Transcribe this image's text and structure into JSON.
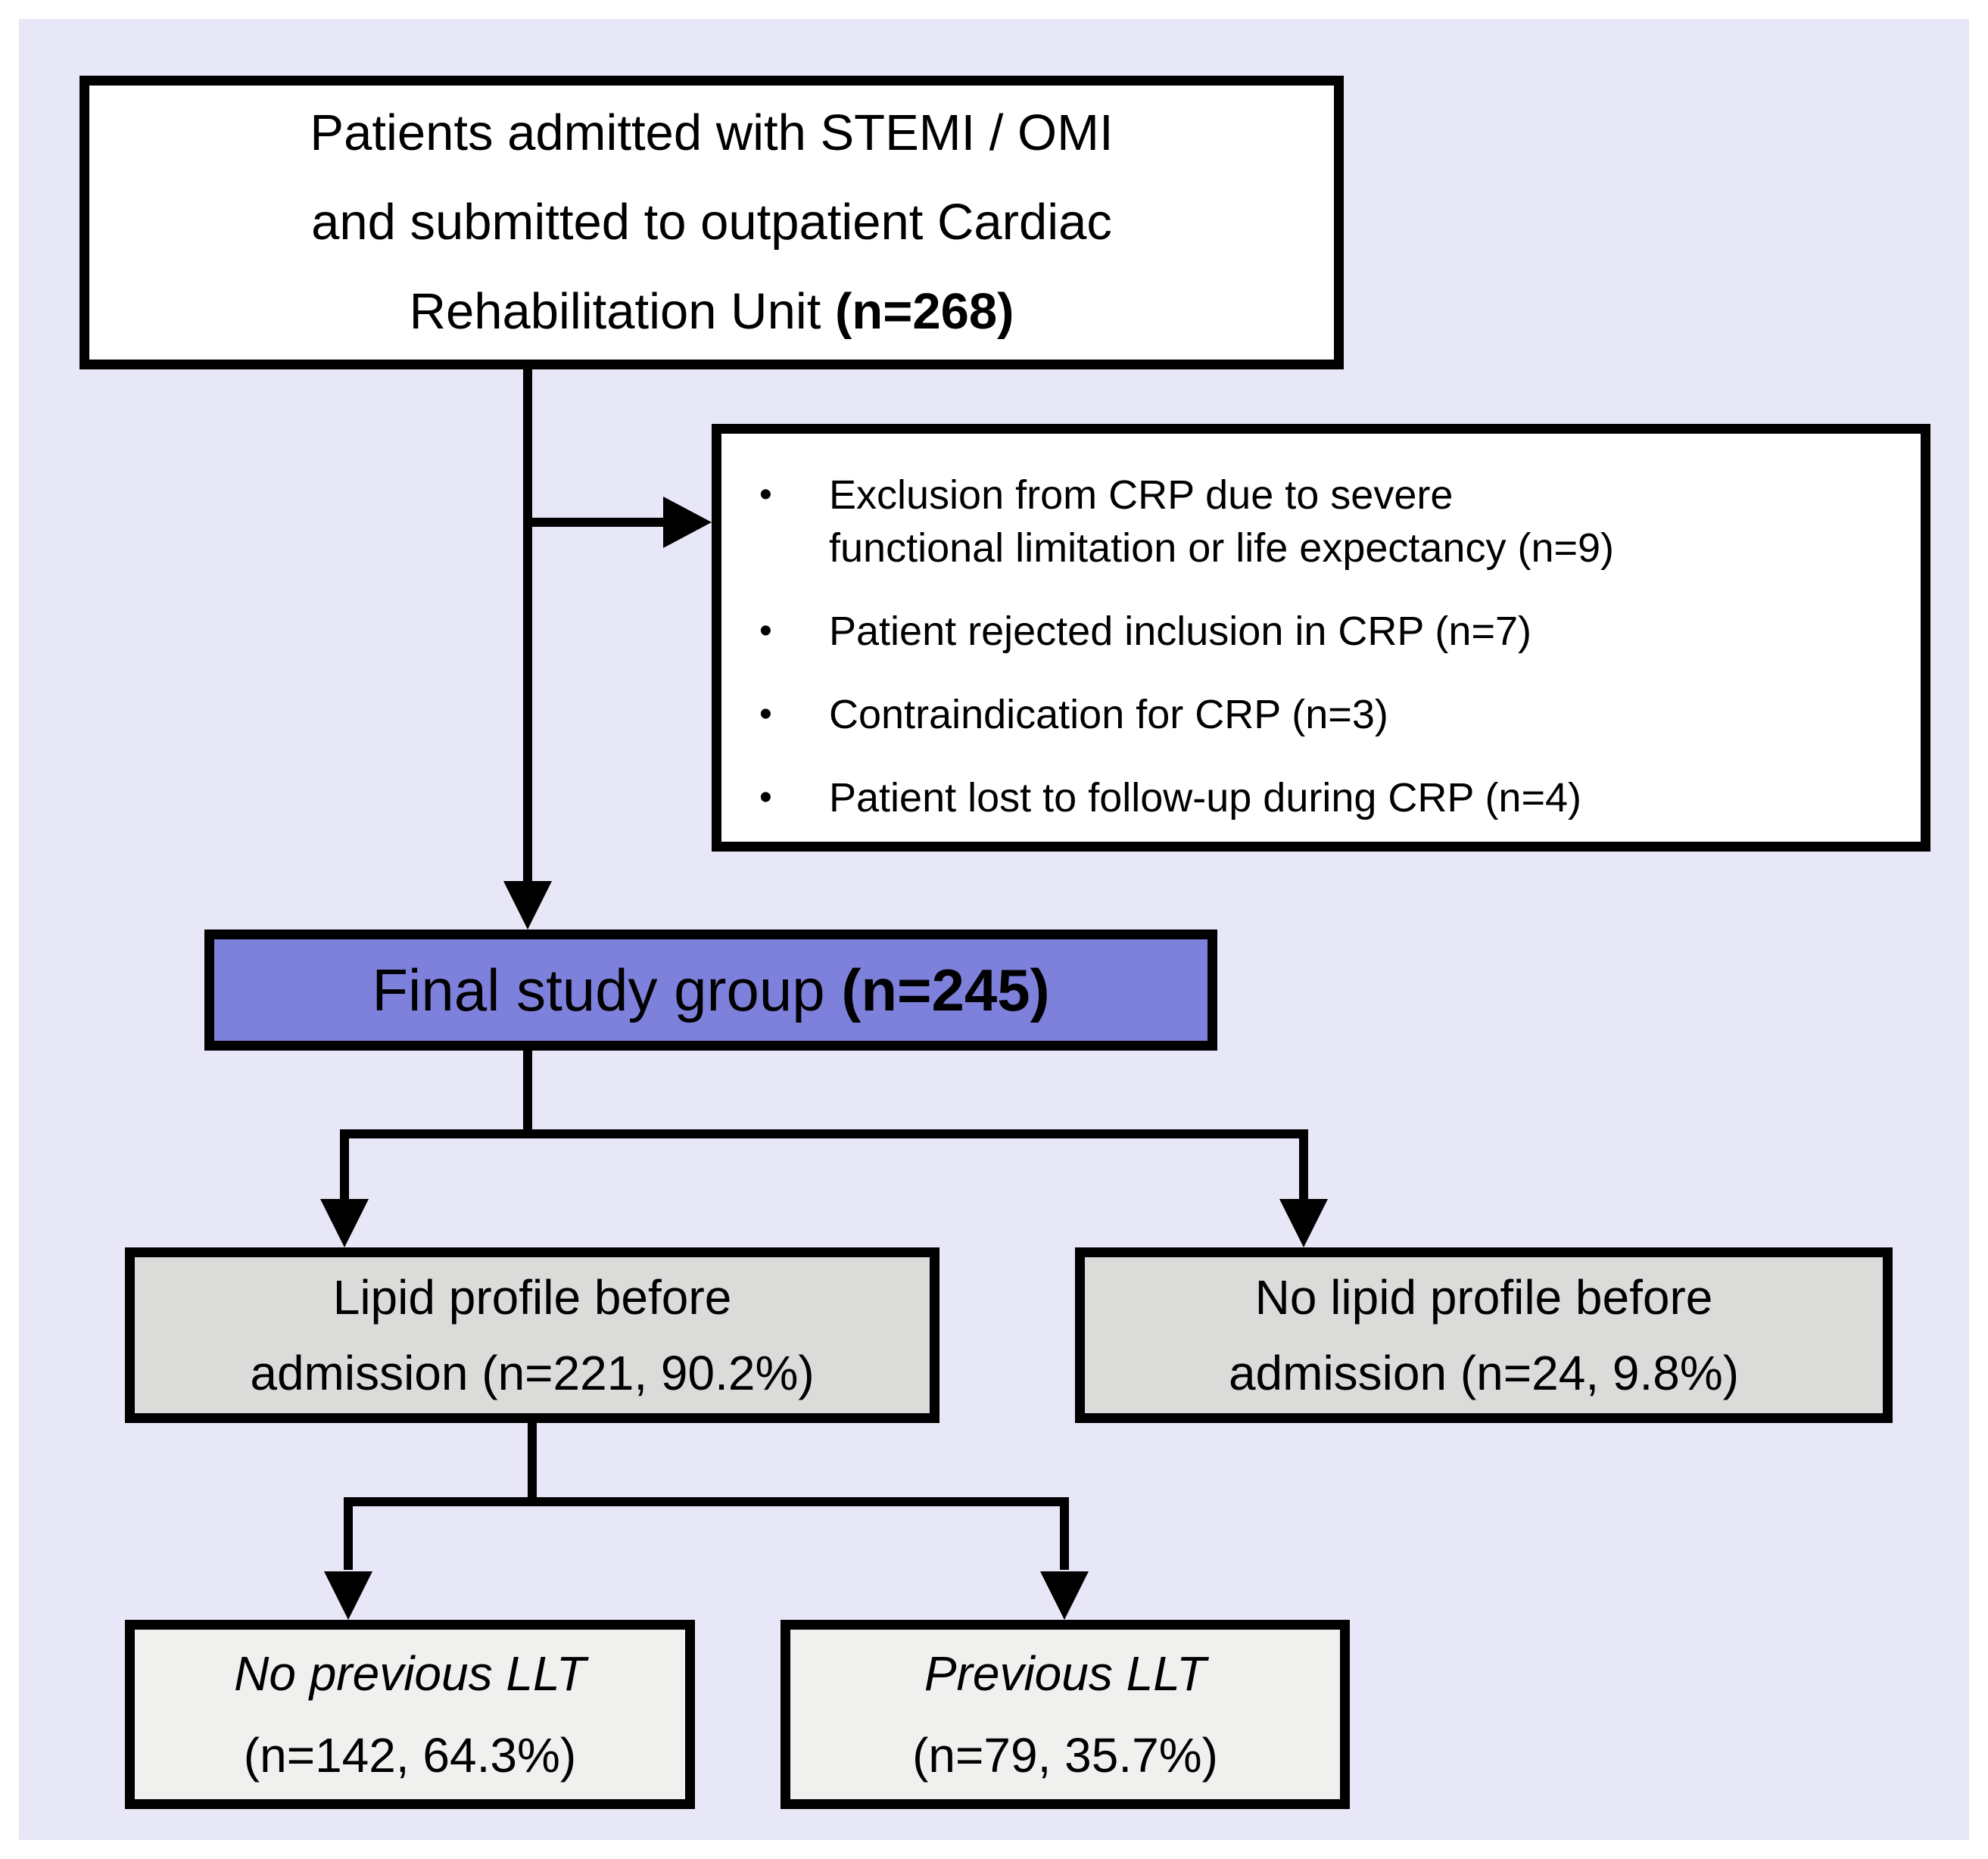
{
  "colors": {
    "outer_background": "#ffffff",
    "panel_background": "#e8e7f8",
    "box_border": "#000000",
    "white_box_background": "#ffffff",
    "highlight_box_background": "#7e81db",
    "gray_box_background": "#dbdbd9",
    "light_box_background": "#f0f0ee",
    "text": "#000000"
  },
  "boxes": {
    "admitted": {
      "line1": "Patients admitted with STEMI / OMI",
      "line2": "and submitted to outpatient Cardiac",
      "line3_text": "Rehabilitation Unit ",
      "line3_bold": "(n=268)"
    },
    "exclusions": {
      "bullet": "•",
      "items": [
        {
          "lines": [
            "Exclusion from CRP due to severe",
            "functional limitation or life expectancy (n=9)"
          ]
        },
        {
          "lines": [
            "Patient rejected inclusion in CRP (n=7)"
          ]
        },
        {
          "lines": [
            "Contraindication for CRP (n=3)"
          ]
        },
        {
          "lines": [
            "Patient lost to follow-up during CRP (n=4)"
          ]
        }
      ]
    },
    "final_group": {
      "text": "Final study group ",
      "bold": "(n=245)"
    },
    "lipid_profile": {
      "line1": "Lipid profile before",
      "line2": "admission (n=221, 90.2%)"
    },
    "no_lipid_profile": {
      "line1": "No lipid profile before",
      "line2": "admission (n=24, 9.8%)"
    },
    "no_previous_llt": {
      "line1": "No previous LLT",
      "line2": "(n=142, 64.3%)"
    },
    "previous_llt": {
      "line1": "Previous LLT",
      "line2": "(n=79, 35.7%)"
    }
  }
}
